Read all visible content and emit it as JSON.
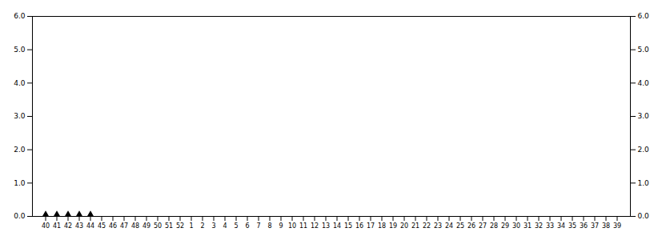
{
  "chart_data": {
    "type": "scatter",
    "categories": [
      "40",
      "41",
      "42",
      "43",
      "44",
      "45",
      "46",
      "47",
      "48",
      "49",
      "50",
      "51",
      "52",
      "1",
      "2",
      "3",
      "4",
      "5",
      "6",
      "7",
      "8",
      "9",
      "10",
      "11",
      "12",
      "13",
      "14",
      "15",
      "16",
      "17",
      "18",
      "19",
      "20",
      "21",
      "22",
      "23",
      "24",
      "25",
      "26",
      "27",
      "28",
      "29",
      "30",
      "31",
      "32",
      "33",
      "34",
      "35",
      "36",
      "37",
      "38",
      "39"
    ],
    "values": [
      0.0,
      0.0,
      0.0,
      0.0,
      0.0,
      null,
      null,
      null,
      null,
      null,
      null,
      null,
      null,
      null,
      null,
      null,
      null,
      null,
      null,
      null,
      null,
      null,
      null,
      null,
      null,
      null,
      null,
      null,
      null,
      null,
      null,
      null,
      null,
      null,
      null,
      null,
      null,
      null,
      null,
      null,
      null,
      null,
      null,
      null,
      null,
      null,
      null,
      null,
      null,
      null,
      null,
      null
    ],
    "color": "#000000",
    "marker": "diamond",
    "ylim": [
      0,
      6
    ],
    "yticks": [
      0,
      1,
      2,
      3,
      4,
      5,
      6
    ],
    "y2lim": [
      0,
      6
    ],
    "y2ticks": [
      0,
      1,
      2,
      3,
      4,
      5,
      6
    ],
    "grid": false
  }
}
